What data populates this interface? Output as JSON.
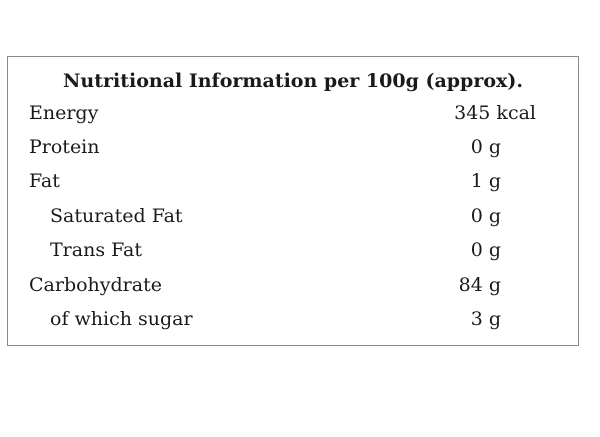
{
  "panel": {
    "title": "Nutritional Information per 100g (approx).",
    "rows": [
      {
        "name": "Energy",
        "value": "345 kcal"
      },
      {
        "name": "Protein",
        "value": "0 g"
      },
      {
        "name": "Fat",
        "value": "1 g"
      },
      {
        "name": "Saturated Fat",
        "value": "0 g"
      },
      {
        "name": "Trans Fat",
        "value": "0 g"
      },
      {
        "name": "Carbohydrate",
        "value": "84 g"
      },
      {
        "name": "of which sugar",
        "value": "3 g"
      }
    ]
  }
}
